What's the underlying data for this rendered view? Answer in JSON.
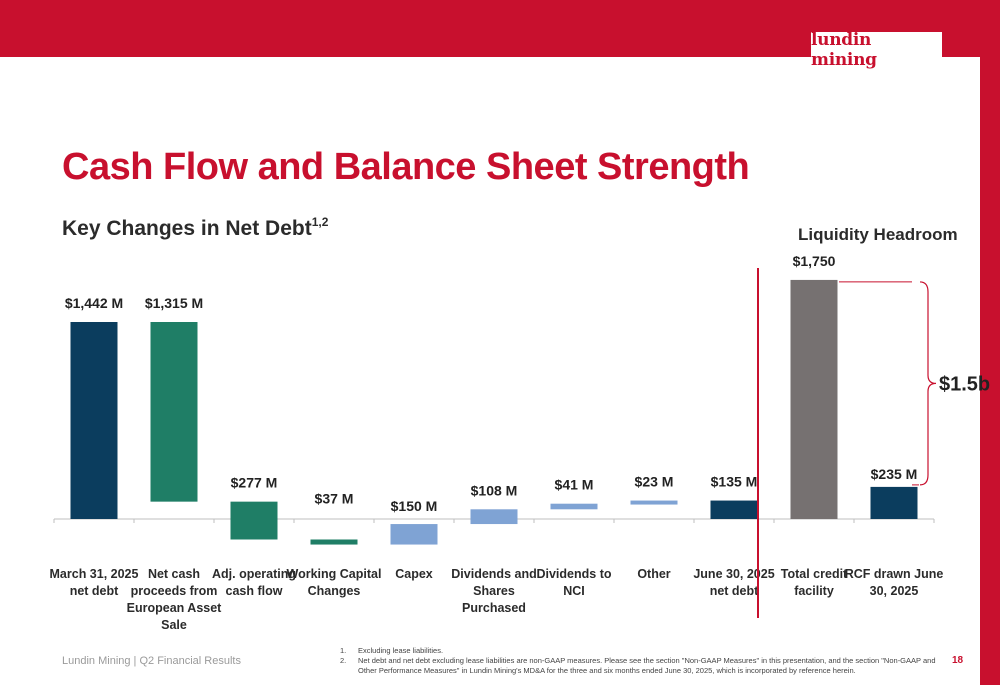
{
  "brand": {
    "logo_text": "lundin mining",
    "color": "#c8102e"
  },
  "page": {
    "title": "Cash Flow and Balance Sheet Strength",
    "subtitle": "Key Changes in Net Debt",
    "subtitle_sup": "1,2",
    "side_title": "Liquidity Headroom",
    "footer": "Lundin Mining | Q2 Financial Results",
    "page_number": "18"
  },
  "footnotes": [
    {
      "num": "1.",
      "text": "Excluding lease liabilities."
    },
    {
      "num": "2.",
      "text": "Net debt and net debt excluding lease liabilities are non-GAAP measures. Please see the section \"Non-GAAP Measures\" in this presentation, and the section \"Non-GAAP and Other Performance Measures\" in Lundin Mining's MD&A for the three and six months ended June 30, 2025, which is incorporated by reference herein."
    }
  ],
  "chart_data": [
    {
      "type": "bar",
      "subtype": "waterfall",
      "ylim": [
        -200,
        1800
      ],
      "grid": false,
      "bars": [
        {
          "category": "March 31, 2025 net debt",
          "label": "$1,442 M",
          "start": 0,
          "end": 1442,
          "color": "#0b3d5e"
        },
        {
          "category": "Net cash proceeds from European Asset Sale",
          "label": "$1,315 M",
          "start": 1442,
          "end": 127,
          "color": "#1f7e66"
        },
        {
          "category": "Adj. operating cash flow",
          "label": "$277 M",
          "start": 127,
          "end": -150,
          "color": "#1f7e66"
        },
        {
          "category": "Working Capital Changes",
          "label": "$37 M",
          "start": -150,
          "end": -187,
          "color": "#1f7e66"
        },
        {
          "category": "Capex",
          "label": "$150 M",
          "start": -187,
          "end": -37,
          "color": "#7fa3d4"
        },
        {
          "category": "Dividends and Shares Purchased",
          "label": "$108 M",
          "start": -37,
          "end": 71,
          "color": "#7fa3d4"
        },
        {
          "category": "Dividends to NCI",
          "label": "$41 M",
          "start": 71,
          "end": 112,
          "color": "#7fa3d4"
        },
        {
          "category": "Other",
          "label": "$23 M",
          "start": 112,
          "end": 135,
          "color": "#7fa3d4"
        },
        {
          "category": "June 30, 2025 net debt",
          "label": "$135 M",
          "start": 0,
          "end": 135,
          "color": "#0b3d5e"
        }
      ]
    },
    {
      "type": "bar",
      "ylim": [
        0,
        1800
      ],
      "bars": [
        {
          "category": "Total credit facility",
          "label": "$1,750",
          "value": 1750,
          "color": "#767171"
        },
        {
          "category": "RCF drawn June 30, 2025",
          "label": "$235 M",
          "value": 235,
          "color": "#0b3d5e"
        }
      ],
      "annotation": "$1.5b"
    }
  ]
}
